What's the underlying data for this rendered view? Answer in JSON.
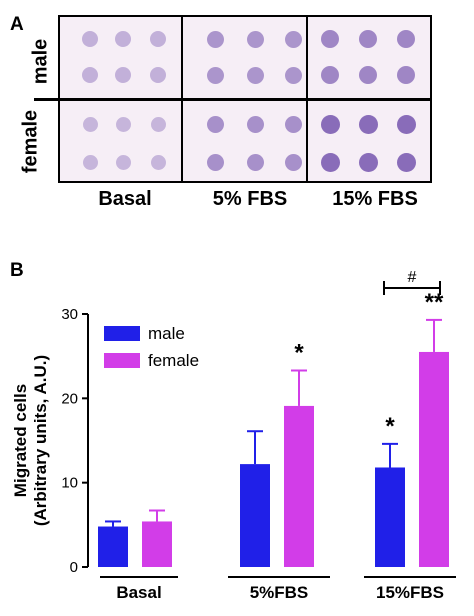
{
  "panel_a": {
    "letter": "A",
    "rows": [
      "male",
      "female"
    ],
    "columns": [
      "Basal",
      "5% FBS",
      "15% FBS"
    ],
    "colors": {
      "background": "#f6eef6",
      "stain": "#7a5ab0"
    }
  },
  "panel_b": {
    "letter": "B"
  },
  "chart_data": {
    "type": "bar",
    "categories": [
      "Basal",
      "5%FBS",
      "15%FBS"
    ],
    "series": [
      {
        "name": "male",
        "values": [
          4.8,
          12.2,
          11.8
        ],
        "errors": [
          0.6,
          3.9,
          2.8
        ],
        "color": "#2020e8",
        "significance": [
          "",
          "",
          "*"
        ]
      },
      {
        "name": "female",
        "values": [
          5.4,
          19.1,
          25.5
        ],
        "errors": [
          1.3,
          4.2,
          3.8
        ],
        "color": "#d23de8",
        "significance": [
          "",
          "*",
          "**"
        ]
      }
    ],
    "ylabel": "Migrated cells",
    "ylabel2": "(Arbitrary units, A.U.)",
    "ylim": [
      0,
      30
    ],
    "yticks": [
      0,
      10,
      20,
      30
    ],
    "comparison_label": "#",
    "legend_position": "top-left",
    "grid": false
  }
}
